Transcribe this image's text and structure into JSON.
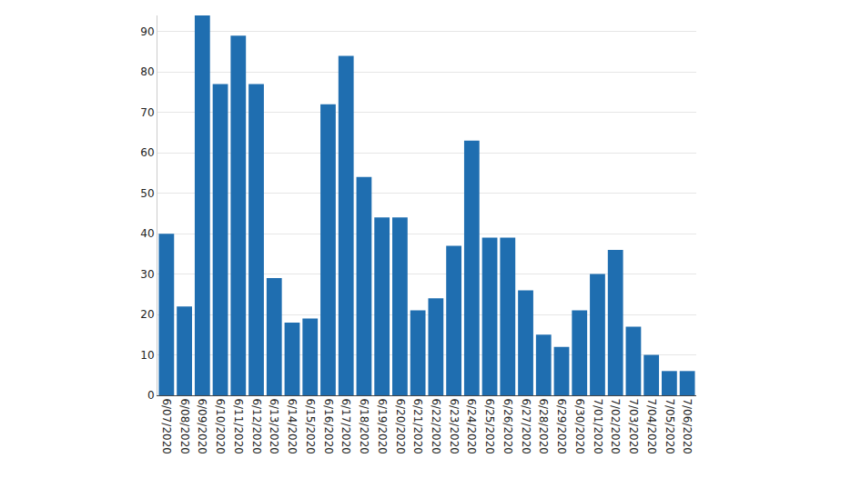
{
  "chart_data": {
    "type": "bar",
    "categories": [
      "6/07/2020",
      "6/08/2020",
      "6/09/2020",
      "6/10/2020",
      "6/11/2020",
      "6/12/2020",
      "6/13/2020",
      "6/14/2020",
      "6/15/2020",
      "6/16/2020",
      "6/17/2020",
      "6/18/2020",
      "6/19/2020",
      "6/20/2020",
      "6/21/2020",
      "6/22/2020",
      "6/23/2020",
      "6/24/2020",
      "6/25/2020",
      "6/26/2020",
      "6/27/2020",
      "6/28/2020",
      "6/29/2020",
      "6/30/2020",
      "7/01/2020",
      "7/02/2020",
      "7/03/2020",
      "7/04/2020",
      "7/05/2020",
      "7/06/2020"
    ],
    "values": [
      40,
      22,
      94,
      77,
      89,
      77,
      29,
      18,
      19,
      72,
      84,
      54,
      44,
      44,
      21,
      24,
      37,
      63,
      39,
      39,
      26,
      15,
      12,
      21,
      30,
      36,
      17,
      10,
      6,
      6
    ],
    "color": "#1f6eb0",
    "ylim": [
      0,
      94
    ],
    "yticks": [
      0,
      10,
      20,
      30,
      40,
      50,
      60,
      70,
      80,
      90
    ],
    "grid": true
  }
}
